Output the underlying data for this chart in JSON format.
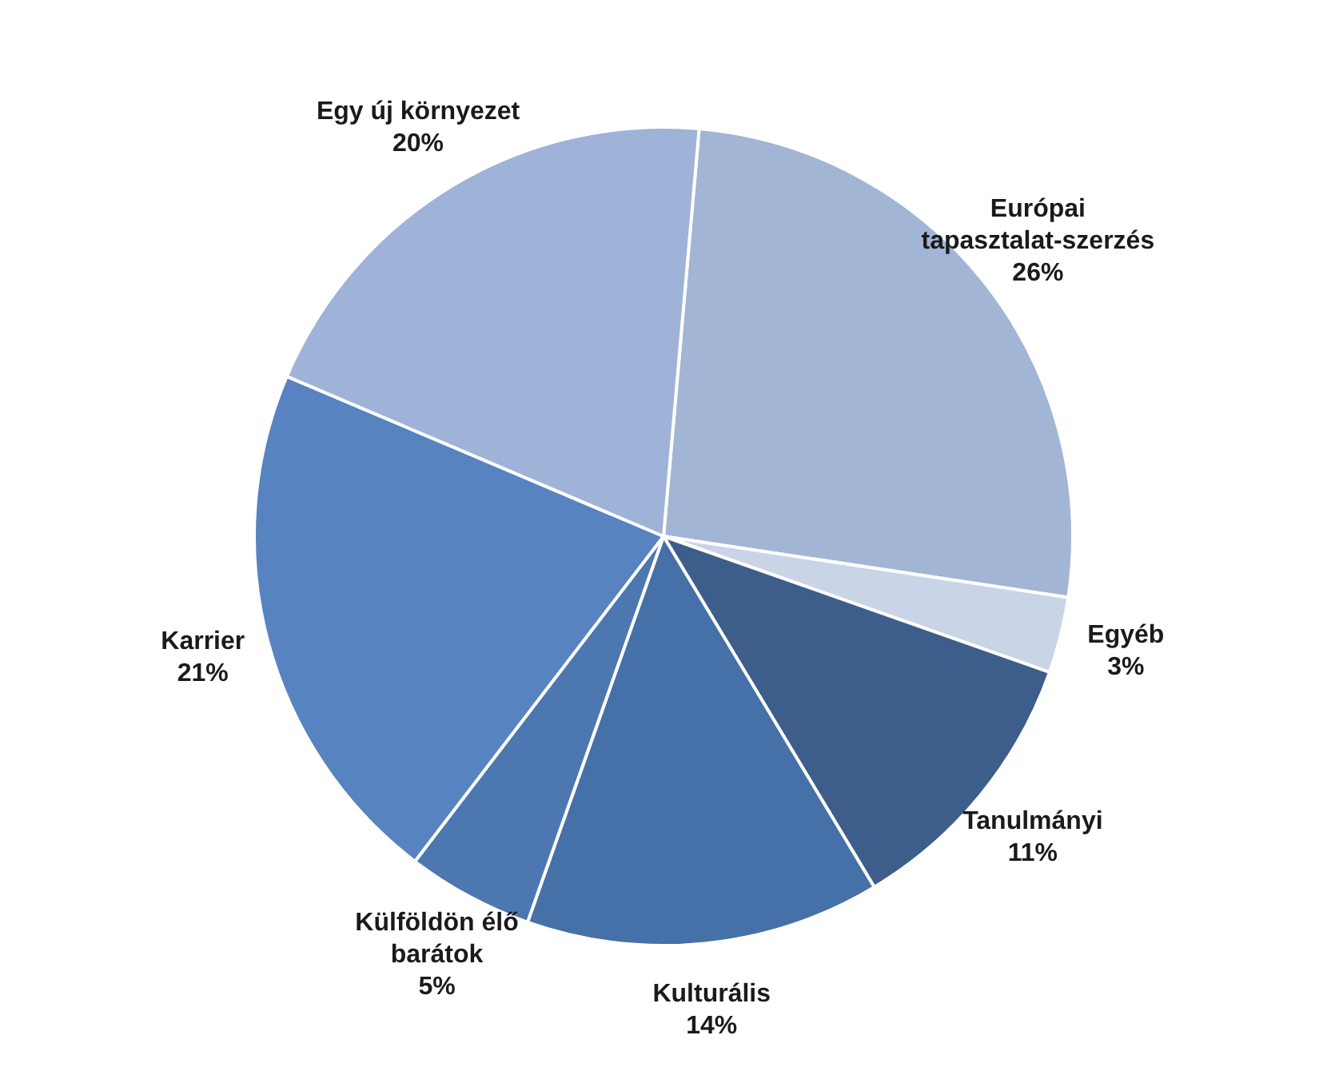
{
  "chart_data": {
    "type": "pie",
    "categories": [
      "Európai tapasztalat-szerzés",
      "Egyéb",
      "Tanulmányi",
      "Kulturális",
      "Külföldön élő barátok",
      "Karrier",
      "Egy új környezet"
    ],
    "values": [
      26,
      3,
      11,
      14,
      5,
      21,
      20
    ],
    "value_labels": [
      "26%",
      "3%",
      "11%",
      "14%",
      "5%",
      "21%",
      "20%"
    ],
    "colors": [
      "#a3b5d5",
      "#c9d4e7",
      "#3d5d8b",
      "#4670a8",
      "#4c77b1",
      "#5783c0",
      "#9fb3d8"
    ],
    "legend": false
  }
}
